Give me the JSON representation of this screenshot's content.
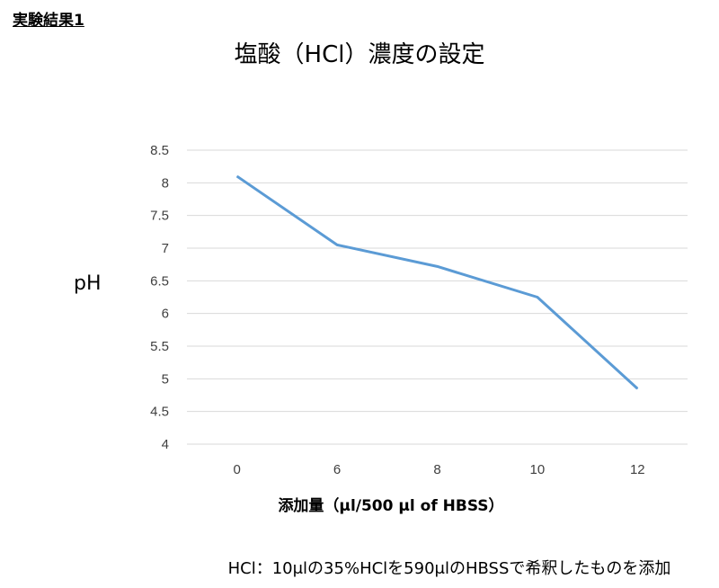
{
  "section_title": "実験結果1",
  "footnote": "HCl：10μlの35%HClを590μlのHBSSで希釈したものを添加",
  "colors": {
    "line": "#5b9bd5",
    "grid": "#d9d9d9",
    "tick_text": "#404040"
  },
  "chart_data": {
    "type": "line",
    "title": "塩酸（HCl）濃度の設定",
    "xlabel": "添加量（μl/500 μl of HBSS）",
    "ylabel": "pH",
    "categories": [
      "0",
      "6",
      "8",
      "10",
      "12"
    ],
    "series": [
      {
        "values": [
          8.1,
          7.05,
          6.72,
          6.25,
          4.85
        ]
      }
    ],
    "ylim": [
      4,
      8.5
    ],
    "yticks": [
      "4",
      "4.5",
      "5",
      "5.5",
      "6",
      "6.5",
      "7",
      "7.5",
      "8",
      "8.5"
    ],
    "grid": true,
    "legend": "none"
  }
}
